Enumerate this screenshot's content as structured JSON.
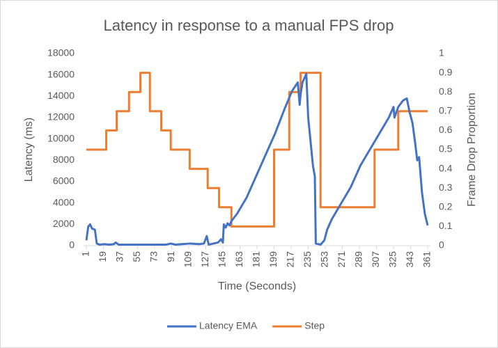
{
  "chart_data": {
    "type": "line",
    "title": "Latency in response to a manual FPS drop",
    "x_label": "Time (Seconds)",
    "y_label": "Latency (ms)",
    "y2_label": "Frame Drop Proportion",
    "xlim": [
      1,
      361
    ],
    "xticks": [
      1,
      19,
      37,
      55,
      73,
      91,
      109,
      127,
      145,
      163,
      181,
      199,
      217,
      235,
      253,
      271,
      289,
      307,
      325,
      343,
      361
    ],
    "ylim": [
      0,
      18000
    ],
    "yticks": [
      0,
      2000,
      4000,
      6000,
      8000,
      10000,
      12000,
      14000,
      16000,
      18000
    ],
    "y2lim": [
      0,
      1
    ],
    "y2ticks": [
      0,
      0.1,
      0.2,
      0.3,
      0.4,
      0.5,
      0.6,
      0.7,
      0.8,
      0.9,
      1
    ],
    "legend": "bottom",
    "series": [
      {
        "name": "Latency EMA",
        "color": "#4472c4",
        "x": [
          1,
          3,
          5,
          7,
          10,
          12,
          15,
          20,
          25,
          30,
          32,
          35,
          60,
          85,
          90,
          95,
          110,
          120,
          125,
          128,
          130,
          135,
          140,
          143,
          145,
          146,
          148,
          150,
          152,
          154,
          160,
          170,
          180,
          190,
          200,
          210,
          218,
          224,
          226,
          227,
          229,
          233,
          235,
          240,
          242,
          243,
          248,
          252,
          255,
          260,
          270,
          280,
          290,
          300,
          310,
          320,
          325,
          326,
          330,
          335,
          339,
          342,
          345,
          348,
          350,
          352,
          355,
          358,
          361
        ],
        "values": [
          500,
          1800,
          2000,
          1600,
          1500,
          200,
          100,
          150,
          100,
          150,
          300,
          100,
          100,
          100,
          200,
          100,
          200,
          150,
          200,
          900,
          100,
          200,
          300,
          600,
          300,
          2000,
          1700,
          2100,
          1900,
          2300,
          3000,
          4500,
          6500,
          8500,
          10500,
          12800,
          14500,
          15300,
          13200,
          14200,
          15300,
          16100,
          12000,
          7500,
          6500,
          200,
          100,
          500,
          1500,
          2500,
          4000,
          5500,
          7500,
          9000,
          10500,
          12000,
          13000,
          12000,
          13000,
          13600,
          13800,
          12500,
          11500,
          9500,
          8000,
          8300,
          5000,
          3000,
          1900
        ]
      },
      {
        "name": "Step",
        "color": "#ed7d31",
        "axis": "y2",
        "step": true,
        "x": [
          1,
          22,
          33,
          46,
          58,
          68,
          80,
          90,
          110,
          129,
          141,
          154,
          199,
          215,
          227,
          248,
          305,
          330,
          361
        ],
        "values": [
          0.5,
          0.6,
          0.7,
          0.8,
          0.9,
          0.7,
          0.6,
          0.5,
          0.4,
          0.3,
          0.2,
          0.1,
          0.5,
          0.8,
          0.9,
          0.2,
          0.5,
          0.7,
          0.7
        ]
      }
    ]
  }
}
